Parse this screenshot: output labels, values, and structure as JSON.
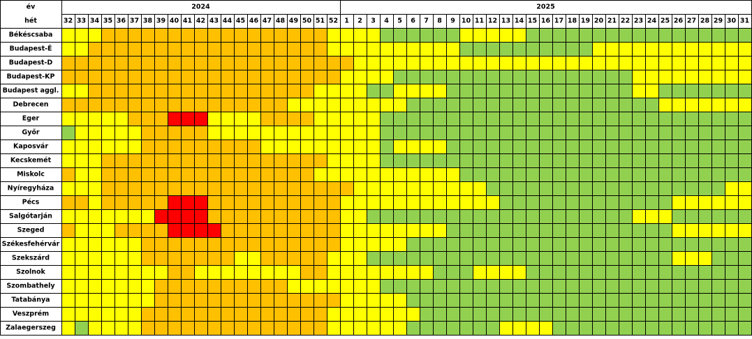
{
  "header": {
    "year_label": "év",
    "week_label": "hét",
    "years": [
      {
        "label": "2024",
        "weeks": [
          "32",
          "33",
          "34",
          "35",
          "36",
          "37",
          "38",
          "39",
          "40",
          "41",
          "42",
          "43",
          "44",
          "45",
          "46",
          "47",
          "48",
          "49",
          "50",
          "51",
          "52"
        ]
      },
      {
        "label": "2025",
        "weeks": [
          "1",
          "2",
          "3",
          "4",
          "5",
          "6",
          "7",
          "8",
          "9",
          "10",
          "11",
          "12",
          "13",
          "14",
          "15",
          "16",
          "17",
          "18",
          "19",
          "20",
          "21",
          "22",
          "23",
          "24",
          "25",
          "26",
          "27",
          "28",
          "29",
          "30",
          "31"
        ]
      }
    ]
  },
  "colors": {
    "Y": "#ffff00",
    "O": "#ffc000",
    "R": "#ff0000",
    "G": "#92d050"
  },
  "rows": [
    {
      "name": "Békéscsaba",
      "levels": "YYYOOOOOOOOOOOOOOOOOYYYYGGGGGGYYYYYGGGGGGGGGGGGGGGGG"
    },
    {
      "name": "Budapest-É",
      "levels": "YYOOOOOOOOOOOOOOOOOOYYYYYYYYYYGGGGGGGGGGYYYYYYYYYYYY"
    },
    {
      "name": "Budapest-D",
      "levels": "OOOOOOOOOOOOOOOOOOOOOOYYYYYYYYYYYYYYYYYYYYYYYYYYYYYY"
    },
    {
      "name": "Budapest-KP",
      "levels": "OOOOOOOOOOOOOOOOOOOOOYYYYGGGGGGGGGGGGGGGGGGYYYYYYYYY"
    },
    {
      "name": "Budapest aggl.",
      "levels": "YYOOOOOOOOOOOOOOOOOYYYYGGYYYYGGGGGGGGGGGGGGYYGGGGGGG"
    },
    {
      "name": "Debrecen",
      "levels": "OOOOOOOOOOOOOOOOOYYYYYYYYYGGGGGGGGGGGGGGGGGGGYYYYYYY"
    },
    {
      "name": "Eger",
      "levels": "YYYYYOOORRRYYYYOOOOYYYYYGGGGGGGGGGGGGGGGGGGGGGGGGGGG"
    },
    {
      "name": "Győr",
      "levels": "GYYYYYOOOOOYYYYYYYYYYYYYGGGGGGGGGGGGGGGGGGGGGGGGGGGG"
    },
    {
      "name": "Kaposvár",
      "levels": "YYYYYYOOOOOOOOOYYYYYYYYYGYYYYGGGGGGGGGGGGGGGGGGGGGGG"
    },
    {
      "name": "Kecskemét",
      "levels": "YYYOOOOOOOOOOOOOOOOOYYYYGGGGGGGGGGGGGGGGGGGGGGGGGGGG"
    },
    {
      "name": "Miskolc",
      "levels": "OYYOOOOOOOOOOOOOOOOYYYYYYYYYYYGGGGGGGGGGGGGGGGGGGGGG"
    },
    {
      "name": "Nyíregyháza",
      "levels": "YYYOOOOOOOOOOOOOOOOOOOYYYYYYYYYYGGGGGGGGGGGGGGGGGGYY"
    },
    {
      "name": "Pécs",
      "levels": "OOYOOOOORRROOOOOOOOOOYYYYYYYYYYYYGGGGGGGGGGGGGYYYYYY"
    },
    {
      "name": "Salgótarján",
      "levels": "YYYYYYYRRRROOOOOOOOOOYYGGGGGGGGGGGGGGGGGGGGYYYGGGGGG"
    },
    {
      "name": "Szeged",
      "levels": "OYYYOOOORRRROOOOOOOOOYYYYYYYYGGGGGGGGGGGGGGGGGYYYYYY"
    },
    {
      "name": "Székesfehérvár",
      "levels": "YYYYYYOOOOOOOOOOOOOOOYYYYYGGGGGGGGGGGGGGGGGGGGGGGGGG"
    },
    {
      "name": "Szekszárd",
      "levels": "YYYYYYOOOOOOOYYOOOOOYYYGGGGGGGGGGGGGGGGGGGGGGGYYYGGG"
    },
    {
      "name": "Szolnok",
      "levels": "YYYYYYYYOOYYYYYYYYOOYYYYYYYYGGGYYYYGGGGGGGGGGGGGGGGG"
    },
    {
      "name": "Szombathely",
      "levels": "YYYYYYYOOOOOOOOOOYYYYYYYGGGGGGGGGGGGGGGGGGGGGGGGGGGG"
    },
    {
      "name": "Tatabánya",
      "levels": "YYYYYYYOOOOOOOOOOOOOOYYYYYGGGGGGGGGGGGGGGGGGGGGGGGGG"
    },
    {
      "name": "Veszprém",
      "levels": "YYYYYYOOOOOOOOOOOOOOYYYYYYYGGGGGGGGGGGGGGGGGGGGGGGGG"
    },
    {
      "name": "Zalaegerszeg",
      "levels": "YGYYYYOOOOOOOOOOOOOOYYYYYYGGGGGGGYYYYGGGGGGGGGGGGGGG"
    }
  ]
}
